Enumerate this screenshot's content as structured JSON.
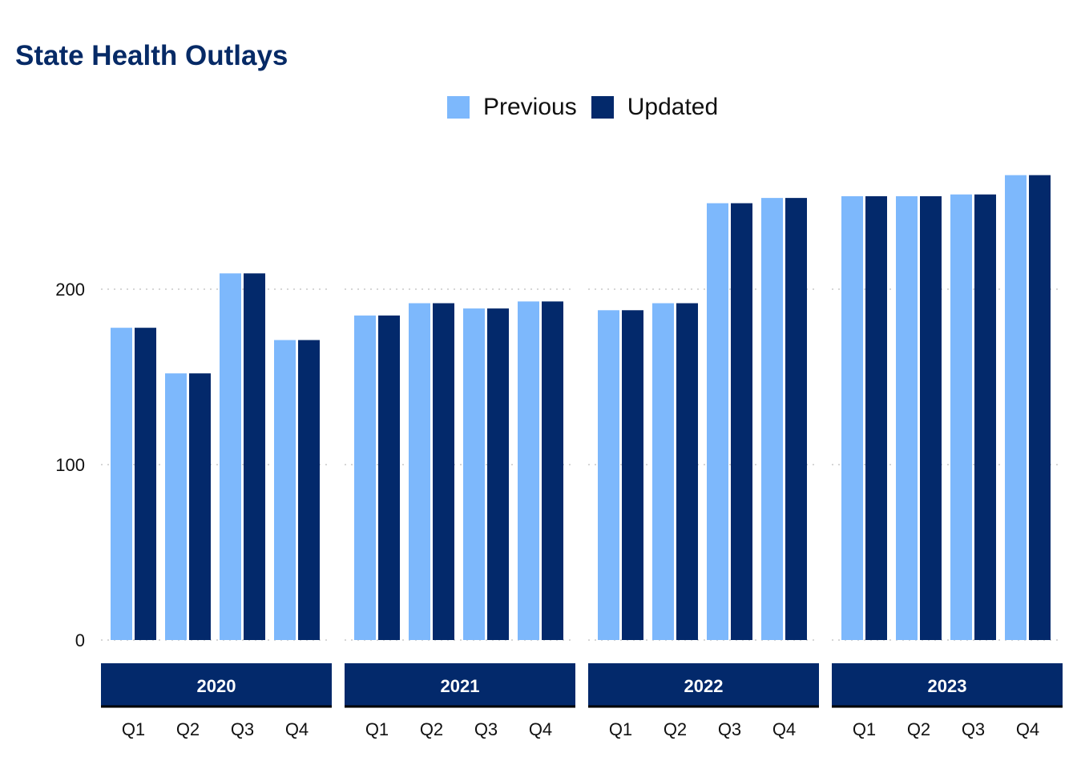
{
  "chart_data": {
    "type": "bar",
    "title": "State Health Outlays",
    "xlabel": "",
    "ylabel": "",
    "ylim": [
      0,
      265
    ],
    "yticks": [
      0,
      100,
      200
    ],
    "grid": true,
    "legend_placement": "top",
    "colors": {
      "Previous": "#7db8fc",
      "Updated": "#03296b",
      "strip": "#03296b"
    },
    "panels": [
      "2020",
      "2021",
      "2022",
      "2023"
    ],
    "categories": [
      "Q1",
      "Q2",
      "Q3",
      "Q4"
    ],
    "series": [
      {
        "name": "Previous",
        "values": [
          [
            178,
            152,
            209,
            171
          ],
          [
            185,
            192,
            189,
            193
          ],
          [
            188,
            192,
            249,
            252
          ],
          [
            253,
            253,
            254,
            265
          ]
        ]
      },
      {
        "name": "Updated",
        "values": [
          [
            178,
            152,
            209,
            171
          ],
          [
            185,
            192,
            189,
            193
          ],
          [
            188,
            192,
            249,
            252
          ],
          [
            253,
            253,
            254,
            265
          ]
        ]
      }
    ]
  }
}
